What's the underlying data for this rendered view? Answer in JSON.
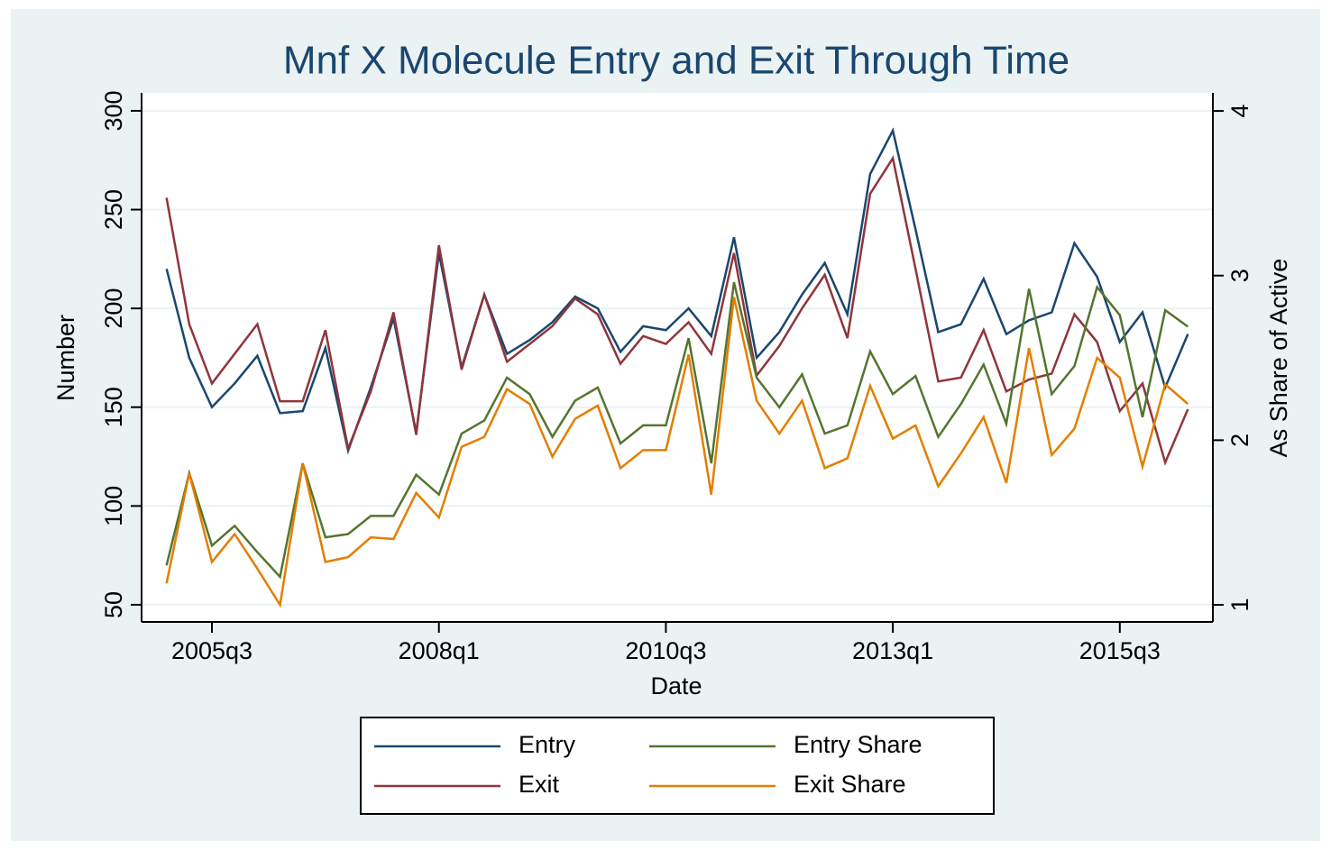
{
  "chart_data": {
    "type": "line",
    "title": "Mnf X Molecule Entry and Exit Through Time",
    "xlabel": "Date",
    "ylabel": "Number",
    "y2label": "As Share of Active",
    "x": [
      180,
      181,
      182,
      183,
      184,
      185,
      186,
      187,
      188,
      189,
      190,
      191,
      192,
      193,
      194,
      195,
      196,
      197,
      198,
      199,
      200,
      201,
      202,
      203,
      204,
      205,
      206,
      207,
      208,
      209,
      210,
      211,
      212,
      213,
      214,
      215,
      216,
      217,
      218,
      219,
      220,
      221,
      222,
      223,
      224,
      225
    ],
    "xlim": [
      178.9,
      226.1
    ],
    "xticks": [
      {
        "value": 182,
        "label": "2005q3"
      },
      {
        "value": 192,
        "label": "2008q1"
      },
      {
        "value": 202,
        "label": "2010q3"
      },
      {
        "value": 212,
        "label": "2013q1"
      },
      {
        "value": 222,
        "label": "2015q3"
      }
    ],
    "ylim": [
      41.3,
      309.1
    ],
    "yticks": [
      50,
      100,
      150,
      200,
      250,
      300
    ],
    "y2lim": [
      0.896,
      4.11
    ],
    "y2ticks": [
      1,
      2,
      3,
      4
    ],
    "grid": true,
    "legend": "bottom",
    "series": [
      {
        "name": "Entry",
        "color": "#1a476f",
        "values": [
          220,
          175,
          150,
          162,
          176,
          147,
          148,
          180,
          128,
          160,
          195,
          137,
          228,
          170,
          207,
          177,
          184,
          193,
          206,
          200,
          178,
          191,
          189,
          200,
          186,
          236,
          175,
          188,
          207,
          223,
          197,
          268,
          290,
          240,
          188,
          192,
          215,
          187,
          194,
          198,
          233,
          216,
          183,
          198,
          160,
          187
        ]
      },
      {
        "name": "Exit",
        "color": "#90353b",
        "values": [
          256,
          192,
          162,
          177,
          192,
          153,
          153,
          189,
          129,
          158,
          198,
          136,
          232,
          169,
          207,
          173,
          182,
          191,
          205,
          197,
          172,
          186,
          182,
          193,
          177,
          228,
          166,
          181,
          200,
          217,
          185,
          258,
          276,
          220,
          163,
          165,
          189,
          158,
          164,
          167,
          197,
          183,
          148,
          162,
          122,
          149
        ]
      },
      {
        "name": "Entry Share",
        "color": "#55752f",
        "axis": "y2",
        "values": [
          1.24,
          1.8,
          1.36,
          1.48,
          1.32,
          1.17,
          1.86,
          1.41,
          1.43,
          1.54,
          1.54,
          1.79,
          1.67,
          2.04,
          2.12,
          2.38,
          2.28,
          2.02,
          2.24,
          2.32,
          1.98,
          2.09,
          2.09,
          2.62,
          1.86,
          2.96,
          2.38,
          2.2,
          2.4,
          2.04,
          2.09,
          2.54,
          2.28,
          2.39,
          2.02,
          2.22,
          2.46,
          2.1,
          2.92,
          2.28,
          2.45,
          2.93,
          2.76,
          2.14,
          2.79,
          2.69
        ]
      },
      {
        "name": "Exit Share",
        "color": "#e37e00",
        "axis": "y2",
        "values": [
          1.13,
          1.8,
          1.26,
          1.43,
          1.22,
          1.0,
          1.86,
          1.26,
          1.29,
          1.41,
          1.4,
          1.68,
          1.53,
          1.96,
          2.02,
          2.31,
          2.22,
          1.9,
          2.13,
          2.21,
          1.83,
          1.94,
          1.94,
          2.52,
          1.67,
          2.87,
          2.24,
          2.04,
          2.24,
          1.83,
          1.89,
          2.33,
          2.01,
          2.09,
          1.72,
          1.92,
          2.14,
          1.74,
          2.56,
          1.91,
          2.07,
          2.5,
          2.38,
          1.84,
          2.34,
          2.22
        ]
      }
    ]
  }
}
